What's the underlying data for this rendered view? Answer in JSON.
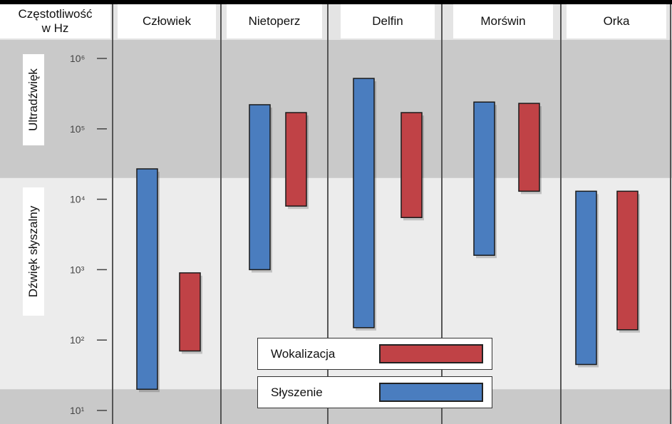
{
  "chart_data": {
    "type": "range-bar",
    "y_axis_title": "Częstotliwość w Hz",
    "yscale": "log",
    "ylim": [
      10,
      1000000
    ],
    "y_ticks": [
      {
        "value": 1000000,
        "label": "10⁶"
      },
      {
        "value": 100000,
        "label": "10⁵"
      },
      {
        "value": 10000,
        "label": "10⁴"
      },
      {
        "value": 1000,
        "label": "10³"
      },
      {
        "value": 100,
        "label": "10²"
      },
      {
        "value": 10,
        "label": "10¹"
      }
    ],
    "categories": [
      "Człowiek",
      "Nietoperz",
      "Delfin",
      "Morświn",
      "Orka"
    ],
    "series": [
      {
        "name": "Słyszenie",
        "color": "#4a7dbf",
        "ranges": [
          [
            20,
            27000
          ],
          [
            1000,
            220000
          ],
          [
            150,
            520000
          ],
          [
            1600,
            240000
          ],
          [
            45,
            13000
          ]
        ]
      },
      {
        "name": "Wokalizacja",
        "color": "#c04246",
        "ranges": [
          [
            70,
            900
          ],
          [
            8000,
            170000
          ],
          [
            5500,
            170000
          ],
          [
            13000,
            230000
          ],
          [
            140,
            13000
          ]
        ]
      }
    ],
    "regions": [
      {
        "label": "Ultradźwięk",
        "from": 20000,
        "to": 1000000,
        "shade": "#c9c9c9"
      },
      {
        "label": "Dźwięk słyszalny",
        "from": 20,
        "to": 20000,
        "shade": "#ececec"
      }
    ]
  },
  "legend": [
    {
      "label": "Wokalizacja",
      "color": "#c04246"
    },
    {
      "label": "Słyszenie",
      "color": "#4a7dbf"
    }
  ]
}
